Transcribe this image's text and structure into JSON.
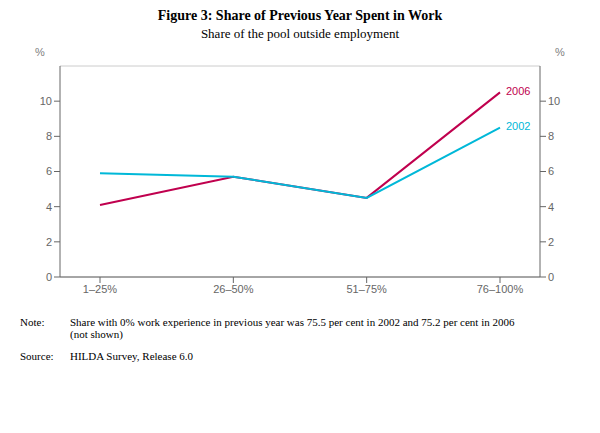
{
  "chart_data": {
    "type": "line",
    "title": "Figure 3: Share of Previous Year Spent in Work",
    "subtitle": "Share of the pool outside employment",
    "categories": [
      "1–25%",
      "26–50%",
      "51–75%",
      "76–100%"
    ],
    "series": [
      {
        "name": "2006",
        "color": "#c0004e",
        "values": [
          4.1,
          5.7,
          4.5,
          10.5
        ]
      },
      {
        "name": "2002",
        "color": "#00b8d8",
        "values": [
          5.9,
          5.7,
          4.5,
          8.5
        ]
      }
    ],
    "ylim": [
      0,
      12
    ],
    "yticks": [
      0,
      2,
      4,
      6,
      8,
      10
    ],
    "y2lim": [
      0,
      12
    ],
    "y2ticks": [
      0,
      2,
      4,
      6,
      8,
      10
    ],
    "ylabel": "%",
    "y2label": "%",
    "grid": true,
    "notes": [
      {
        "label": "Note:",
        "text": "Share with 0% work experience in previous year was 75.5 per cent in 2002 and 75.2 per cent in 2006\n(not shown)"
      },
      {
        "label": "Source:",
        "text": "HILDA Survey, Release 6.0"
      }
    ]
  }
}
